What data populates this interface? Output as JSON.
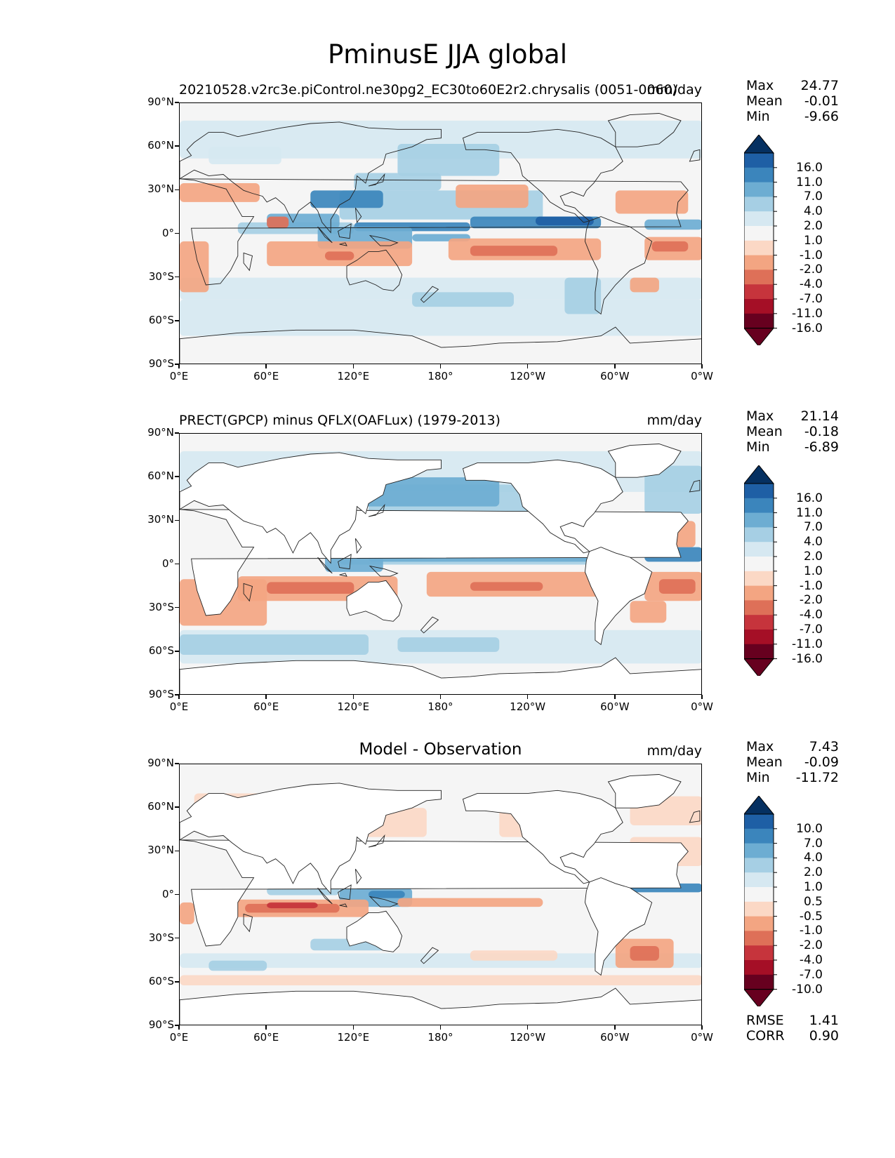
{
  "title": "PminusE JJA global",
  "units": "mm/day",
  "x_ticks": [
    "0°E",
    "60°E",
    "120°E",
    "180°",
    "120°W",
    "60°W",
    "0°W"
  ],
  "y_ticks": [
    "90°N",
    "60°N",
    "30°N",
    "0°",
    "30°S",
    "60°S",
    "90°S"
  ],
  "palette": [
    "#67001f",
    "#a50f26",
    "#c6343c",
    "#de7058",
    "#f3a582",
    "#fbd8c5",
    "#f5f5f5",
    "#d6e8f1",
    "#a6cfe4",
    "#6dadd2",
    "#3b85bc",
    "#1e5fa5",
    "#053061"
  ],
  "panels": [
    {
      "title": "20210528.v2rc3e.piControl.ne30pg2_EC30to60E2r2.chrysalis (0051-0060)",
      "title_style": "left",
      "units": "mm/day",
      "stats": {
        "max_label": "Max",
        "max": "24.77",
        "mean_label": "Mean",
        "mean": "-0.01",
        "min_label": "Min",
        "min": "-9.66"
      },
      "colorbar_levels": [
        "16.0",
        "11.0",
        "7.0",
        "4.0",
        "2.0",
        "1.0",
        "-1.0",
        "-2.0",
        "-4.0",
        "-7.0",
        "-11.0",
        "-16.0"
      ]
    },
    {
      "title": "PRECT(GPCP) minus QFLX(OAFLux) (1979-2013)",
      "title_style": "left",
      "units": "mm/day",
      "stats": {
        "max_label": "Max",
        "max": "21.14",
        "mean_label": "Mean",
        "mean": "-0.18",
        "min_label": "Min",
        "min": "-6.89"
      },
      "colorbar_levels": [
        "16.0",
        "11.0",
        "7.0",
        "4.0",
        "2.0",
        "1.0",
        "-1.0",
        "-2.0",
        "-4.0",
        "-7.0",
        "-11.0",
        "-16.0"
      ]
    },
    {
      "title": "Model - Observation",
      "title_style": "center",
      "units": "mm/day",
      "stats": {
        "max_label": "Max",
        "max": "7.43",
        "mean_label": "Mean",
        "mean": "-0.09",
        "min_label": "Min",
        "min": "-11.72"
      },
      "colorbar_levels": [
        "10.0",
        "7.0",
        "4.0",
        "2.0",
        "1.0",
        "0.5",
        "-0.5",
        "-1.0",
        "-2.0",
        "-4.0",
        "-7.0",
        "-10.0"
      ],
      "metrics": {
        "rmse_label": "RMSE",
        "rmse": "1.41",
        "corr_label": "CORR",
        "corr": "0.90"
      }
    }
  ],
  "chart_data": [
    {
      "type": "heatmap",
      "title": "20210528.v2rc3e.piControl.ne30pg2_EC30to60E2r2.chrysalis (0051-0060)",
      "units": "mm/day",
      "xlim": [
        0,
        360
      ],
      "ylim": [
        -90,
        90
      ],
      "levels": [
        -16,
        -11,
        -7,
        -4,
        -2,
        -1,
        1,
        2,
        4,
        7,
        11,
        16
      ],
      "max": 24.77,
      "mean": -0.01,
      "min": -9.66
    },
    {
      "type": "heatmap",
      "title": "PRECT(GPCP) minus QFLX(OAFLux) (1979-2013)",
      "units": "mm/day",
      "xlim": [
        0,
        360
      ],
      "ylim": [
        -90,
        90
      ],
      "levels": [
        -16,
        -11,
        -7,
        -4,
        -2,
        -1,
        1,
        2,
        4,
        7,
        11,
        16
      ],
      "max": 21.14,
      "mean": -0.18,
      "min": -6.89
    },
    {
      "type": "heatmap",
      "title": "Model - Observation",
      "units": "mm/day",
      "xlim": [
        0,
        360
      ],
      "ylim": [
        -90,
        90
      ],
      "levels": [
        -10,
        -7,
        -4,
        -2,
        -1,
        -0.5,
        0.5,
        1,
        2,
        4,
        7,
        10
      ],
      "max": 7.43,
      "mean": -0.09,
      "min": -11.72,
      "rmse": 1.41,
      "corr": 0.9
    }
  ]
}
